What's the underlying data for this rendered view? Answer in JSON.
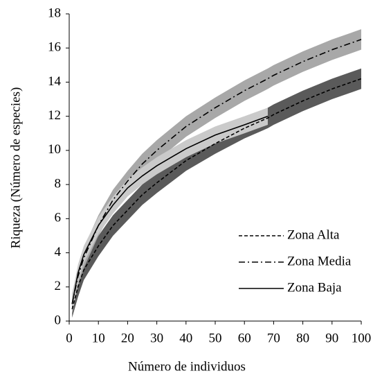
{
  "chart_data": {
    "type": "line",
    "xlabel": "Número de individuos",
    "ylabel": "Riqueza (Número de especies)",
    "x": [
      1,
      3,
      5,
      10,
      15,
      20,
      25,
      30,
      40,
      50,
      60,
      68,
      70,
      80,
      90,
      100
    ],
    "xlim": [
      0,
      100
    ],
    "xticks": [
      0,
      10,
      20,
      30,
      40,
      50,
      60,
      70,
      80,
      90,
      100
    ],
    "ylim": [
      0,
      18
    ],
    "yticks": [
      0,
      2,
      4,
      6,
      8,
      10,
      12,
      14,
      16,
      18
    ],
    "grid": false,
    "legend": "lower right",
    "series": [
      {
        "name": "Zona Alta",
        "color": "#000000",
        "style": "dashed",
        "band_color": "#5a5a5a",
        "values": [
          0.7,
          2.0,
          3.0,
          4.4,
          5.6,
          6.5,
          7.4,
          8.1,
          9.4,
          10.4,
          11.3,
          11.9,
          12.1,
          12.9,
          13.6,
          14.2
        ],
        "lower": [
          0.2,
          1.4,
          2.4,
          3.8,
          5.0,
          5.9,
          6.8,
          7.5,
          8.8,
          9.8,
          10.7,
          11.3,
          11.5,
          12.3,
          13.0,
          13.6
        ],
        "upper": [
          1.2,
          2.6,
          3.6,
          5.0,
          6.2,
          7.1,
          8.0,
          8.7,
          10.0,
          11.0,
          11.9,
          12.5,
          12.7,
          13.5,
          14.2,
          14.8
        ]
      },
      {
        "name": "Zona Media",
        "color": "#000000",
        "style": "dashdot",
        "band_color": "#a8a8a8",
        "values": [
          1.0,
          2.6,
          3.7,
          5.6,
          7.1,
          8.2,
          9.2,
          10.0,
          11.4,
          12.5,
          13.5,
          14.2,
          14.4,
          15.2,
          15.9,
          16.5
        ],
        "lower": [
          0.4,
          2.0,
          3.1,
          5.0,
          6.5,
          7.6,
          8.6,
          9.4,
          10.8,
          11.9,
          12.9,
          13.6,
          13.8,
          14.6,
          15.3,
          15.9
        ],
        "upper": [
          1.6,
          3.2,
          4.3,
          6.2,
          7.7,
          8.8,
          9.8,
          10.6,
          12.0,
          13.1,
          14.1,
          14.8,
          15.0,
          15.8,
          16.5,
          17.1
        ]
      },
      {
        "name": "Zona Baja",
        "color": "#000000",
        "style": "solid",
        "band_color": "#cacaca",
        "values": [
          1.0,
          2.8,
          3.9,
          5.6,
          6.8,
          7.8,
          8.5,
          9.1,
          10.1,
          10.9,
          11.5,
          12.0,
          null,
          null,
          null,
          null
        ],
        "lower": [
          0.5,
          2.3,
          3.4,
          5.1,
          6.3,
          7.3,
          8.0,
          8.6,
          9.6,
          10.4,
          11.0,
          11.5,
          null,
          null,
          null,
          null
        ],
        "upper": [
          1.5,
          3.3,
          4.4,
          6.1,
          7.3,
          8.3,
          9.0,
          9.6,
          10.6,
          11.4,
          12.0,
          12.5,
          null,
          null,
          null,
          null
        ]
      }
    ]
  }
}
